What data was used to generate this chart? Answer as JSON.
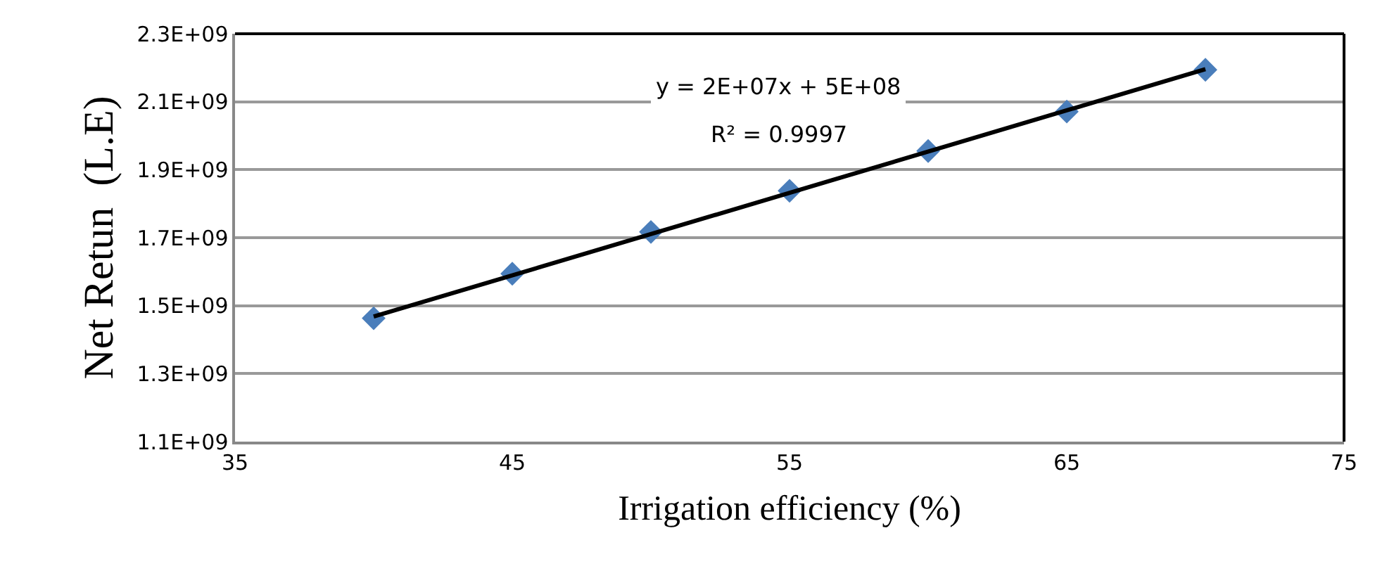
{
  "chart_data": {
    "type": "scatter",
    "xlabel": "Irrigation efficiency (%)",
    "ylabel": "Net Retun  (L.E)",
    "annotations": [
      "y = 2E+07x + 5E+08",
      "R² = 0.9997"
    ],
    "series": [
      {
        "color": "#4a7ebb",
        "marker": "diamond",
        "x": [
          40,
          45,
          50,
          55,
          60,
          65,
          70
        ],
        "values": [
          1463000000,
          1594000000,
          1717000000,
          1838000000,
          1955000000,
          2071000000,
          2194000000
        ]
      },
      {
        "type": "line",
        "color": "#000000",
        "marker": "none",
        "line_style": "solid",
        "x": [
          40,
          70
        ],
        "values": [
          1468000000,
          2196000000
        ]
      }
    ],
    "xlim": [
      35,
      75
    ],
    "xticks": [
      35,
      45,
      55,
      65,
      75
    ],
    "ylim": [
      1100000000,
      2300000000
    ],
    "yticks": [
      {
        "value": 1100000000,
        "label": "1.1E+09"
      },
      {
        "value": 1300000000,
        "label": "1.3E+09"
      },
      {
        "value": 1500000000,
        "label": "1.5E+09"
      },
      {
        "value": 1700000000,
        "label": "1.7E+09"
      },
      {
        "value": 1900000000,
        "label": "1.9E+09"
      },
      {
        "value": 2100000000,
        "label": "2.1E+09"
      },
      {
        "value": 2300000000,
        "label": "2.3E+09"
      }
    ],
    "grid": "y"
  }
}
